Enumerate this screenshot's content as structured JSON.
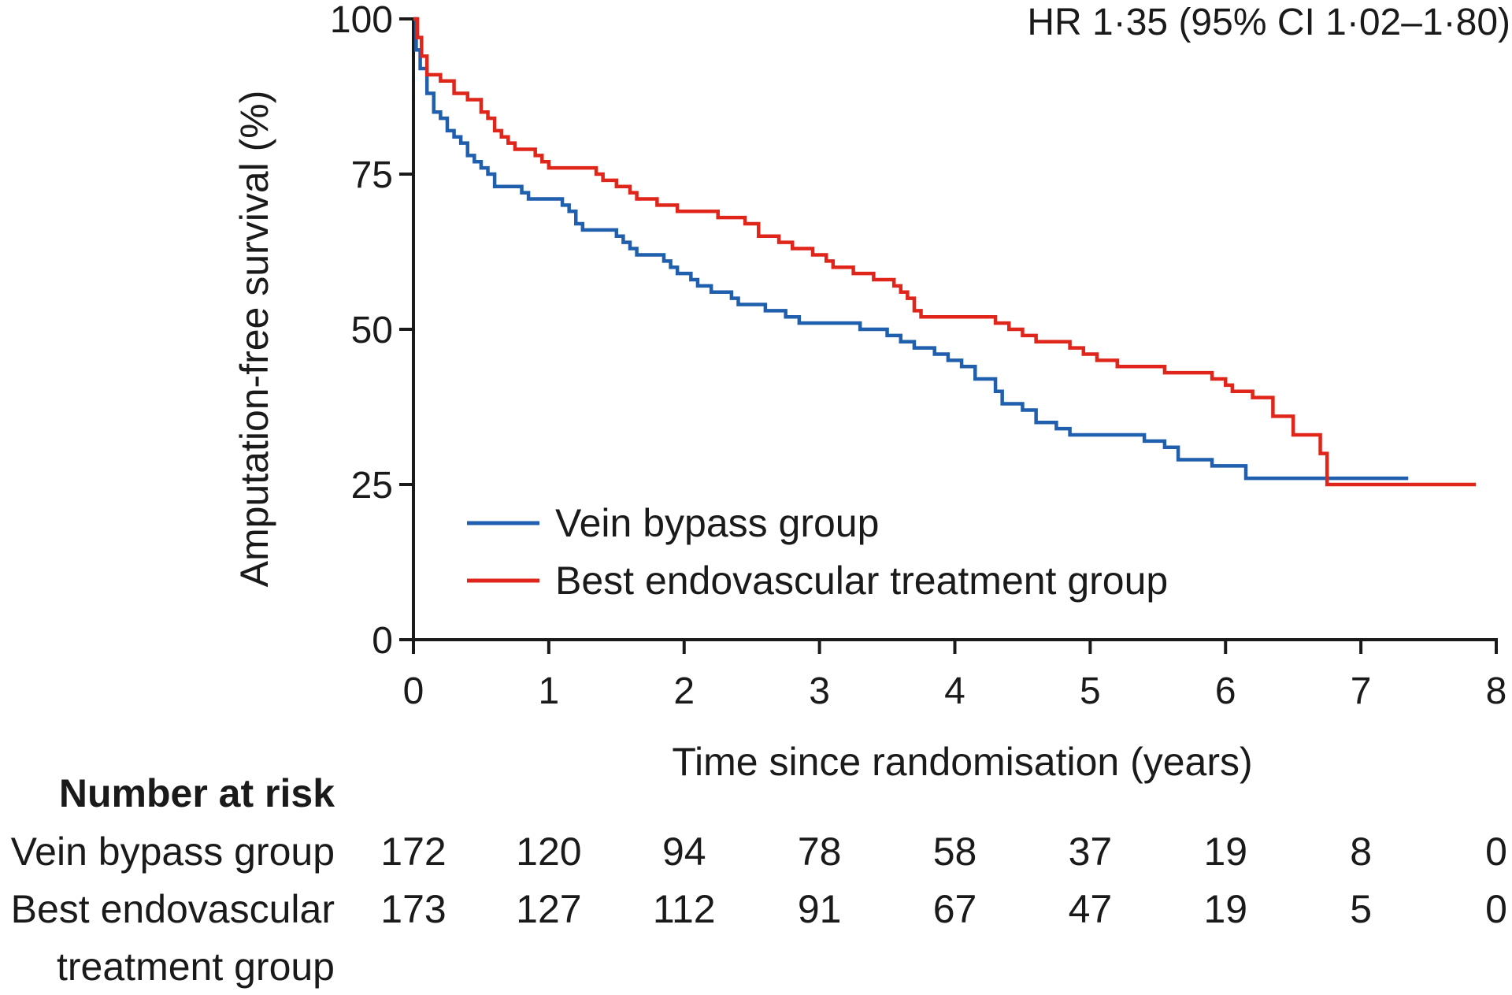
{
  "chart_data": {
    "type": "line",
    "title": "",
    "annotation": "HR 1·35 (95% CI 1·02–1·80)",
    "xlabel": "Time since randomisation (years)",
    "ylabel": "Amputation-free survival (%)",
    "xlim": [
      0,
      8
    ],
    "ylim": [
      0,
      100
    ],
    "xticks": [
      "0",
      "1",
      "2",
      "3",
      "4",
      "5",
      "6",
      "7",
      "8"
    ],
    "yticks": [
      "0",
      "25",
      "50",
      "75",
      "100"
    ],
    "grid": false,
    "legend_position": "bottom-left",
    "series": [
      {
        "name": "Vein bypass group",
        "color": "#1f5fae",
        "step": true,
        "points": [
          [
            0,
            100
          ],
          [
            0.02,
            95
          ],
          [
            0.05,
            92
          ],
          [
            0.1,
            88
          ],
          [
            0.15,
            85
          ],
          [
            0.2,
            84
          ],
          [
            0.25,
            82
          ],
          [
            0.3,
            81
          ],
          [
            0.35,
            80
          ],
          [
            0.4,
            78
          ],
          [
            0.45,
            77
          ],
          [
            0.5,
            76
          ],
          [
            0.55,
            75
          ],
          [
            0.6,
            73
          ],
          [
            0.75,
            73
          ],
          [
            0.8,
            72
          ],
          [
            0.85,
            71
          ],
          [
            1.05,
            71
          ],
          [
            1.1,
            70
          ],
          [
            1.15,
            69
          ],
          [
            1.2,
            67
          ],
          [
            1.25,
            66
          ],
          [
            1.45,
            66
          ],
          [
            1.5,
            65
          ],
          [
            1.55,
            64
          ],
          [
            1.6,
            63
          ],
          [
            1.65,
            62
          ],
          [
            1.85,
            61
          ],
          [
            1.9,
            60
          ],
          [
            1.95,
            59
          ],
          [
            2.05,
            58
          ],
          [
            2.1,
            57
          ],
          [
            2.2,
            56
          ],
          [
            2.35,
            55
          ],
          [
            2.4,
            54
          ],
          [
            2.6,
            53
          ],
          [
            2.75,
            52
          ],
          [
            2.85,
            51
          ],
          [
            3.2,
            51
          ],
          [
            3.3,
            50
          ],
          [
            3.5,
            49
          ],
          [
            3.6,
            48
          ],
          [
            3.7,
            47
          ],
          [
            3.85,
            46
          ],
          [
            3.95,
            45
          ],
          [
            4.05,
            44
          ],
          [
            4.15,
            42
          ],
          [
            4.3,
            40
          ],
          [
            4.35,
            38
          ],
          [
            4.5,
            37
          ],
          [
            4.6,
            35
          ],
          [
            4.75,
            34
          ],
          [
            4.85,
            33
          ],
          [
            5.35,
            33
          ],
          [
            5.4,
            32
          ],
          [
            5.55,
            31
          ],
          [
            5.65,
            29
          ],
          [
            5.9,
            28
          ],
          [
            6.15,
            26
          ],
          [
            7.35,
            26
          ]
        ]
      },
      {
        "name": "Best endovascular treatment group",
        "color": "#e0251b",
        "step": true,
        "points": [
          [
            0,
            100
          ],
          [
            0.03,
            97
          ],
          [
            0.06,
            94
          ],
          [
            0.1,
            91
          ],
          [
            0.2,
            90
          ],
          [
            0.3,
            88
          ],
          [
            0.4,
            87
          ],
          [
            0.5,
            85
          ],
          [
            0.55,
            84
          ],
          [
            0.6,
            82
          ],
          [
            0.65,
            81
          ],
          [
            0.7,
            80
          ],
          [
            0.75,
            79
          ],
          [
            0.9,
            78
          ],
          [
            0.95,
            77
          ],
          [
            1.0,
            76
          ],
          [
            1.3,
            76
          ],
          [
            1.35,
            75
          ],
          [
            1.4,
            74
          ],
          [
            1.5,
            73
          ],
          [
            1.6,
            72
          ],
          [
            1.65,
            71
          ],
          [
            1.8,
            70
          ],
          [
            1.95,
            69
          ],
          [
            2.2,
            69
          ],
          [
            2.25,
            68
          ],
          [
            2.4,
            68
          ],
          [
            2.45,
            67
          ],
          [
            2.55,
            65
          ],
          [
            2.7,
            64
          ],
          [
            2.8,
            63
          ],
          [
            2.95,
            62
          ],
          [
            3.05,
            61
          ],
          [
            3.1,
            60
          ],
          [
            3.25,
            59
          ],
          [
            3.4,
            58
          ],
          [
            3.55,
            57
          ],
          [
            3.6,
            56
          ],
          [
            3.65,
            55
          ],
          [
            3.7,
            53
          ],
          [
            3.75,
            52
          ],
          [
            4.2,
            52
          ],
          [
            4.3,
            51
          ],
          [
            4.4,
            50
          ],
          [
            4.5,
            49
          ],
          [
            4.6,
            48
          ],
          [
            4.85,
            47
          ],
          [
            4.95,
            46
          ],
          [
            5.05,
            45
          ],
          [
            5.2,
            44
          ],
          [
            5.55,
            43
          ],
          [
            5.9,
            42
          ],
          [
            6.0,
            41
          ],
          [
            6.05,
            40
          ],
          [
            6.2,
            39
          ],
          [
            6.35,
            36
          ],
          [
            6.5,
            33
          ],
          [
            6.7,
            30
          ],
          [
            6.75,
            25
          ],
          [
            7.85,
            25
          ]
        ]
      }
    ],
    "risk_table": {
      "title": "Number at risk",
      "rows": [
        {
          "label_lines": [
            "Vein bypass group"
          ],
          "values": [
            "172",
            "120",
            "94",
            "78",
            "58",
            "37",
            "19",
            "8",
            "0"
          ]
        },
        {
          "label_lines": [
            "Best endovascular",
            "treatment group"
          ],
          "values": [
            "173",
            "127",
            "112",
            "91",
            "67",
            "47",
            "19",
            "5",
            "0"
          ]
        }
      ]
    }
  }
}
